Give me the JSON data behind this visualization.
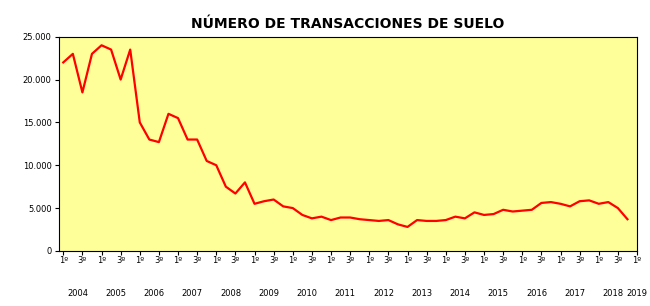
{
  "title": "NÚMERO DE TRANSACCIONES DE SUELO",
  "line_color": "#FF0000",
  "background_color": "#FFFF99",
  "outer_background": "#FFFFFF",
  "ylim": [
    0,
    25000
  ],
  "yticks": [
    0,
    5000,
    10000,
    15000,
    20000,
    25000
  ],
  "values": [
    22000,
    23000,
    18500,
    23000,
    24000,
    23500,
    20000,
    23500,
    15000,
    13000,
    12700,
    16000,
    15500,
    13000,
    13000,
    10500,
    10000,
    7500,
    6700,
    8000,
    5500,
    5800,
    6000,
    5200,
    5000,
    4200,
    3800,
    4000,
    3600,
    3900,
    3900,
    3700,
    3600,
    3500,
    3600,
    3100,
    2800,
    3600,
    3500,
    3500,
    3600,
    4000,
    3800,
    4500,
    4200,
    4300,
    4800,
    4600,
    4700,
    4800,
    5600,
    5700,
    5500,
    5200,
    5800,
    5900,
    5500,
    5700,
    5000,
    3700
  ],
  "x_year_labels": [
    "2004",
    "2005",
    "2006",
    "2007",
    "2008",
    "2009",
    "2010",
    "2011",
    "2012",
    "2013",
    "2014",
    "2015",
    "2016",
    "2017",
    "2018",
    "2019"
  ],
  "quarters_per_year": 4,
  "title_fontsize": 10,
  "tick_fontsize": 6,
  "year_fontsize": 6,
  "line_width": 1.6
}
